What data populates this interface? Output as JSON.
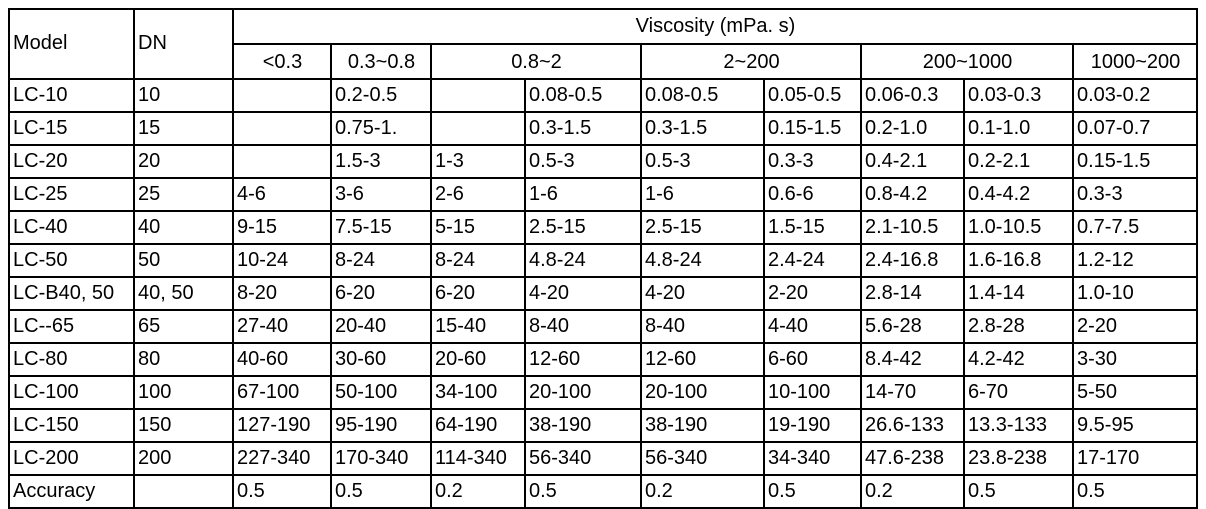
{
  "table": {
    "header": {
      "model_label": "Model",
      "dn_label": "DN",
      "viscosity_title": "Viscosity (mPa. s)",
      "ranges": [
        {
          "label": "<0.3"
        },
        {
          "label": "0.3~0.8"
        },
        {
          "label": "0.8~2"
        },
        {
          "label": "2~200"
        },
        {
          "label": "200~1000"
        },
        {
          "label": "1000~200"
        }
      ]
    },
    "rows": [
      {
        "model": "LC-10",
        "dn": "10",
        "values": [
          "",
          "0.2-0.5",
          "",
          "0.08-0.5",
          "0.08-0.5",
          "0.05-0.5",
          "0.06-0.3",
          "0.03-0.3",
          "0.03-0.2"
        ]
      },
      {
        "model": "LC-15",
        "dn": "15",
        "values": [
          "",
          "0.75-1.",
          "",
          "0.3-1.5",
          "0.3-1.5",
          "0.15-1.5",
          "0.2-1.0",
          "0.1-1.0",
          "0.07-0.7"
        ]
      },
      {
        "model": "LC-20",
        "dn": "20",
        "values": [
          "",
          "1.5-3",
          "1-3",
          "0.5-3",
          "0.5-3",
          "0.3-3",
          "0.4-2.1",
          "0.2-2.1",
          "0.15-1.5"
        ]
      },
      {
        "model": "LC-25",
        "dn": "25",
        "values": [
          "4-6",
          "3-6",
          "2-6",
          "1-6",
          "1-6",
          "0.6-6",
          "0.8-4.2",
          "0.4-4.2",
          "0.3-3"
        ]
      },
      {
        "model": "LC-40",
        "dn": "40",
        "values": [
          "9-15",
          "7.5-15",
          "5-15",
          "2.5-15",
          "2.5-15",
          "1.5-15",
          "2.1-10.5",
          "1.0-10.5",
          "0.7-7.5"
        ]
      },
      {
        "model": "LC-50",
        "dn": "50",
        "values": [
          "10-24",
          "8-24",
          "8-24",
          "4.8-24",
          "4.8-24",
          "2.4-24",
          "2.4-16.8",
          "1.6-16.8",
          "1.2-12"
        ]
      },
      {
        "model": "LC-B40, 50",
        "dn": "40, 50",
        "values": [
          "8-20",
          "6-20",
          "6-20",
          "4-20",
          "4-20",
          "2-20",
          "2.8-14",
          "1.4-14",
          "1.0-10"
        ]
      },
      {
        "model": "LC--65",
        "dn": "65",
        "values": [
          "27-40",
          "20-40",
          "15-40",
          "8-40",
          "8-40",
          "4-40",
          "5.6-28",
          "2.8-28",
          "2-20"
        ]
      },
      {
        "model": "LC-80",
        "dn": "80",
        "values": [
          "40-60",
          "30-60",
          "20-60",
          "12-60",
          "12-60",
          "6-60",
          "8.4-42",
          "4.2-42",
          "3-30"
        ]
      },
      {
        "model": "LC-100",
        "dn": "100",
        "values": [
          "67-100",
          "50-100",
          "34-100",
          "20-100",
          "20-100",
          "10-100",
          "14-70",
          "6-70",
          "5-50"
        ]
      },
      {
        "model": "LC-150",
        "dn": "150",
        "values": [
          "127-190",
          "95-190",
          "64-190",
          "38-190",
          "38-190",
          "19-190",
          "26.6-133",
          "13.3-133",
          "9.5-95"
        ]
      },
      {
        "model": "LC-200",
        "dn": "200",
        "values": [
          "227-340",
          "170-340",
          "114-340",
          "56-340",
          "56-340",
          "34-340",
          "47.6-238",
          "23.8-238",
          "17-170"
        ]
      },
      {
        "model": "Accuracy",
        "dn": "",
        "values": [
          "0.5",
          "0.5",
          "0.2",
          "0.5",
          "0.2",
          "0.5",
          "0.2",
          "0.5",
          "0.5"
        ]
      }
    ]
  }
}
